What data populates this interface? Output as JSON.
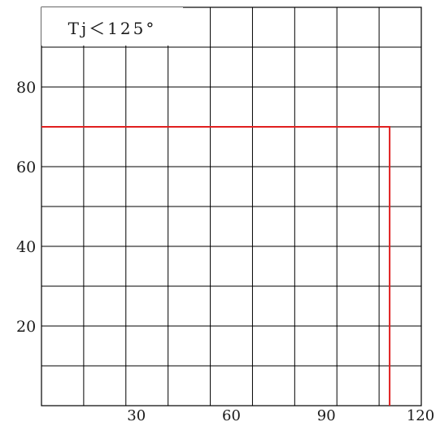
{
  "chart_data": {
    "type": "line",
    "title": "",
    "xlabel": "",
    "ylabel": "",
    "annotation": "Tj＜125°",
    "xlim": [
      0,
      120
    ],
    "ylim": [
      0,
      100
    ],
    "grid": true,
    "x_grid_step": 13.33,
    "y_grid_step": 10,
    "x_ticks": [
      {
        "value": 30,
        "label": "30"
      },
      {
        "value": 60,
        "label": "60"
      },
      {
        "value": 90,
        "label": "90"
      },
      {
        "value": 120,
        "label": "120"
      }
    ],
    "y_ticks": [
      {
        "value": 20,
        "label": "20"
      },
      {
        "value": 40,
        "label": "40"
      },
      {
        "value": 60,
        "label": "60"
      },
      {
        "value": 80,
        "label": "80"
      }
    ],
    "series": [
      {
        "color": "#e02020",
        "points": [
          [
            0,
            70
          ],
          [
            110,
            70
          ],
          [
            110,
            0
          ]
        ]
      }
    ],
    "colors": {
      "grid": "#000000",
      "series": "#e02020"
    }
  }
}
